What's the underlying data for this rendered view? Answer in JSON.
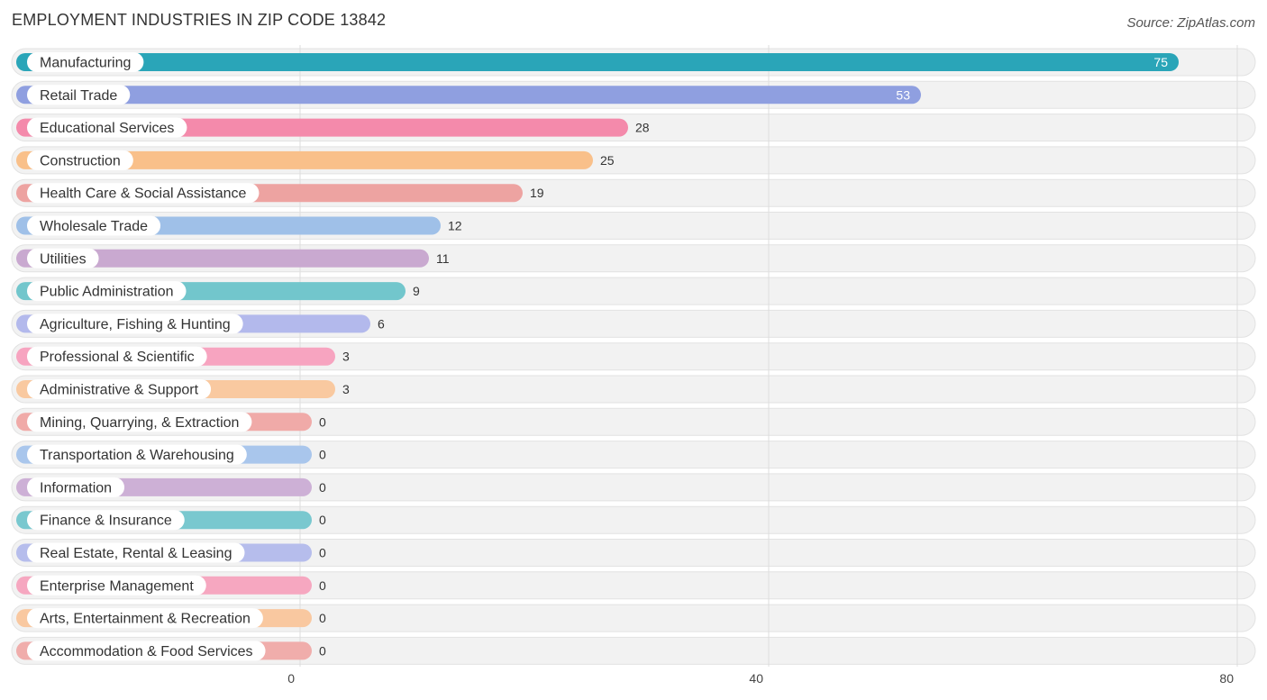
{
  "title": "EMPLOYMENT INDUSTRIES IN ZIP CODE 13842",
  "source": "Source: ZipAtlas.com",
  "chart_data": {
    "type": "bar",
    "orientation": "horizontal",
    "title": "EMPLOYMENT INDUSTRIES IN ZIP CODE 13842",
    "xlim": [
      0,
      80
    ],
    "xticks": [
      0,
      40,
      80
    ],
    "grid": true,
    "categories": [
      "Manufacturing",
      "Retail Trade",
      "Educational Services",
      "Construction",
      "Health Care & Social Assistance",
      "Wholesale Trade",
      "Utilities",
      "Public Administration",
      "Agriculture, Fishing & Hunting",
      "Professional & Scientific",
      "Administrative & Support",
      "Mining, Quarrying, & Extraction",
      "Transportation & Warehousing",
      "Information",
      "Finance & Insurance",
      "Real Estate, Rental & Leasing",
      "Enterprise Management",
      "Arts, Entertainment & Recreation",
      "Accommodation & Food Services"
    ],
    "values": [
      75,
      53,
      28,
      25,
      19,
      12,
      11,
      9,
      6,
      3,
      3,
      0,
      0,
      0,
      0,
      0,
      0,
      0,
      0
    ],
    "colors": [
      "#2aa5b8",
      "#8f9fe0",
      "#f48aab",
      "#f9c08a",
      "#eda3a1",
      "#9fc0e8",
      "#c9a9d0",
      "#72c6cc",
      "#b3b9ec",
      "#f7a4c0",
      "#f9c9a0",
      "#f0aaa8",
      "#a9c6ec",
      "#cdb0d6",
      "#79c8cf",
      "#b6bdec",
      "#f6a7c0",
      "#f9c8a0",
      "#f0adab"
    ]
  }
}
